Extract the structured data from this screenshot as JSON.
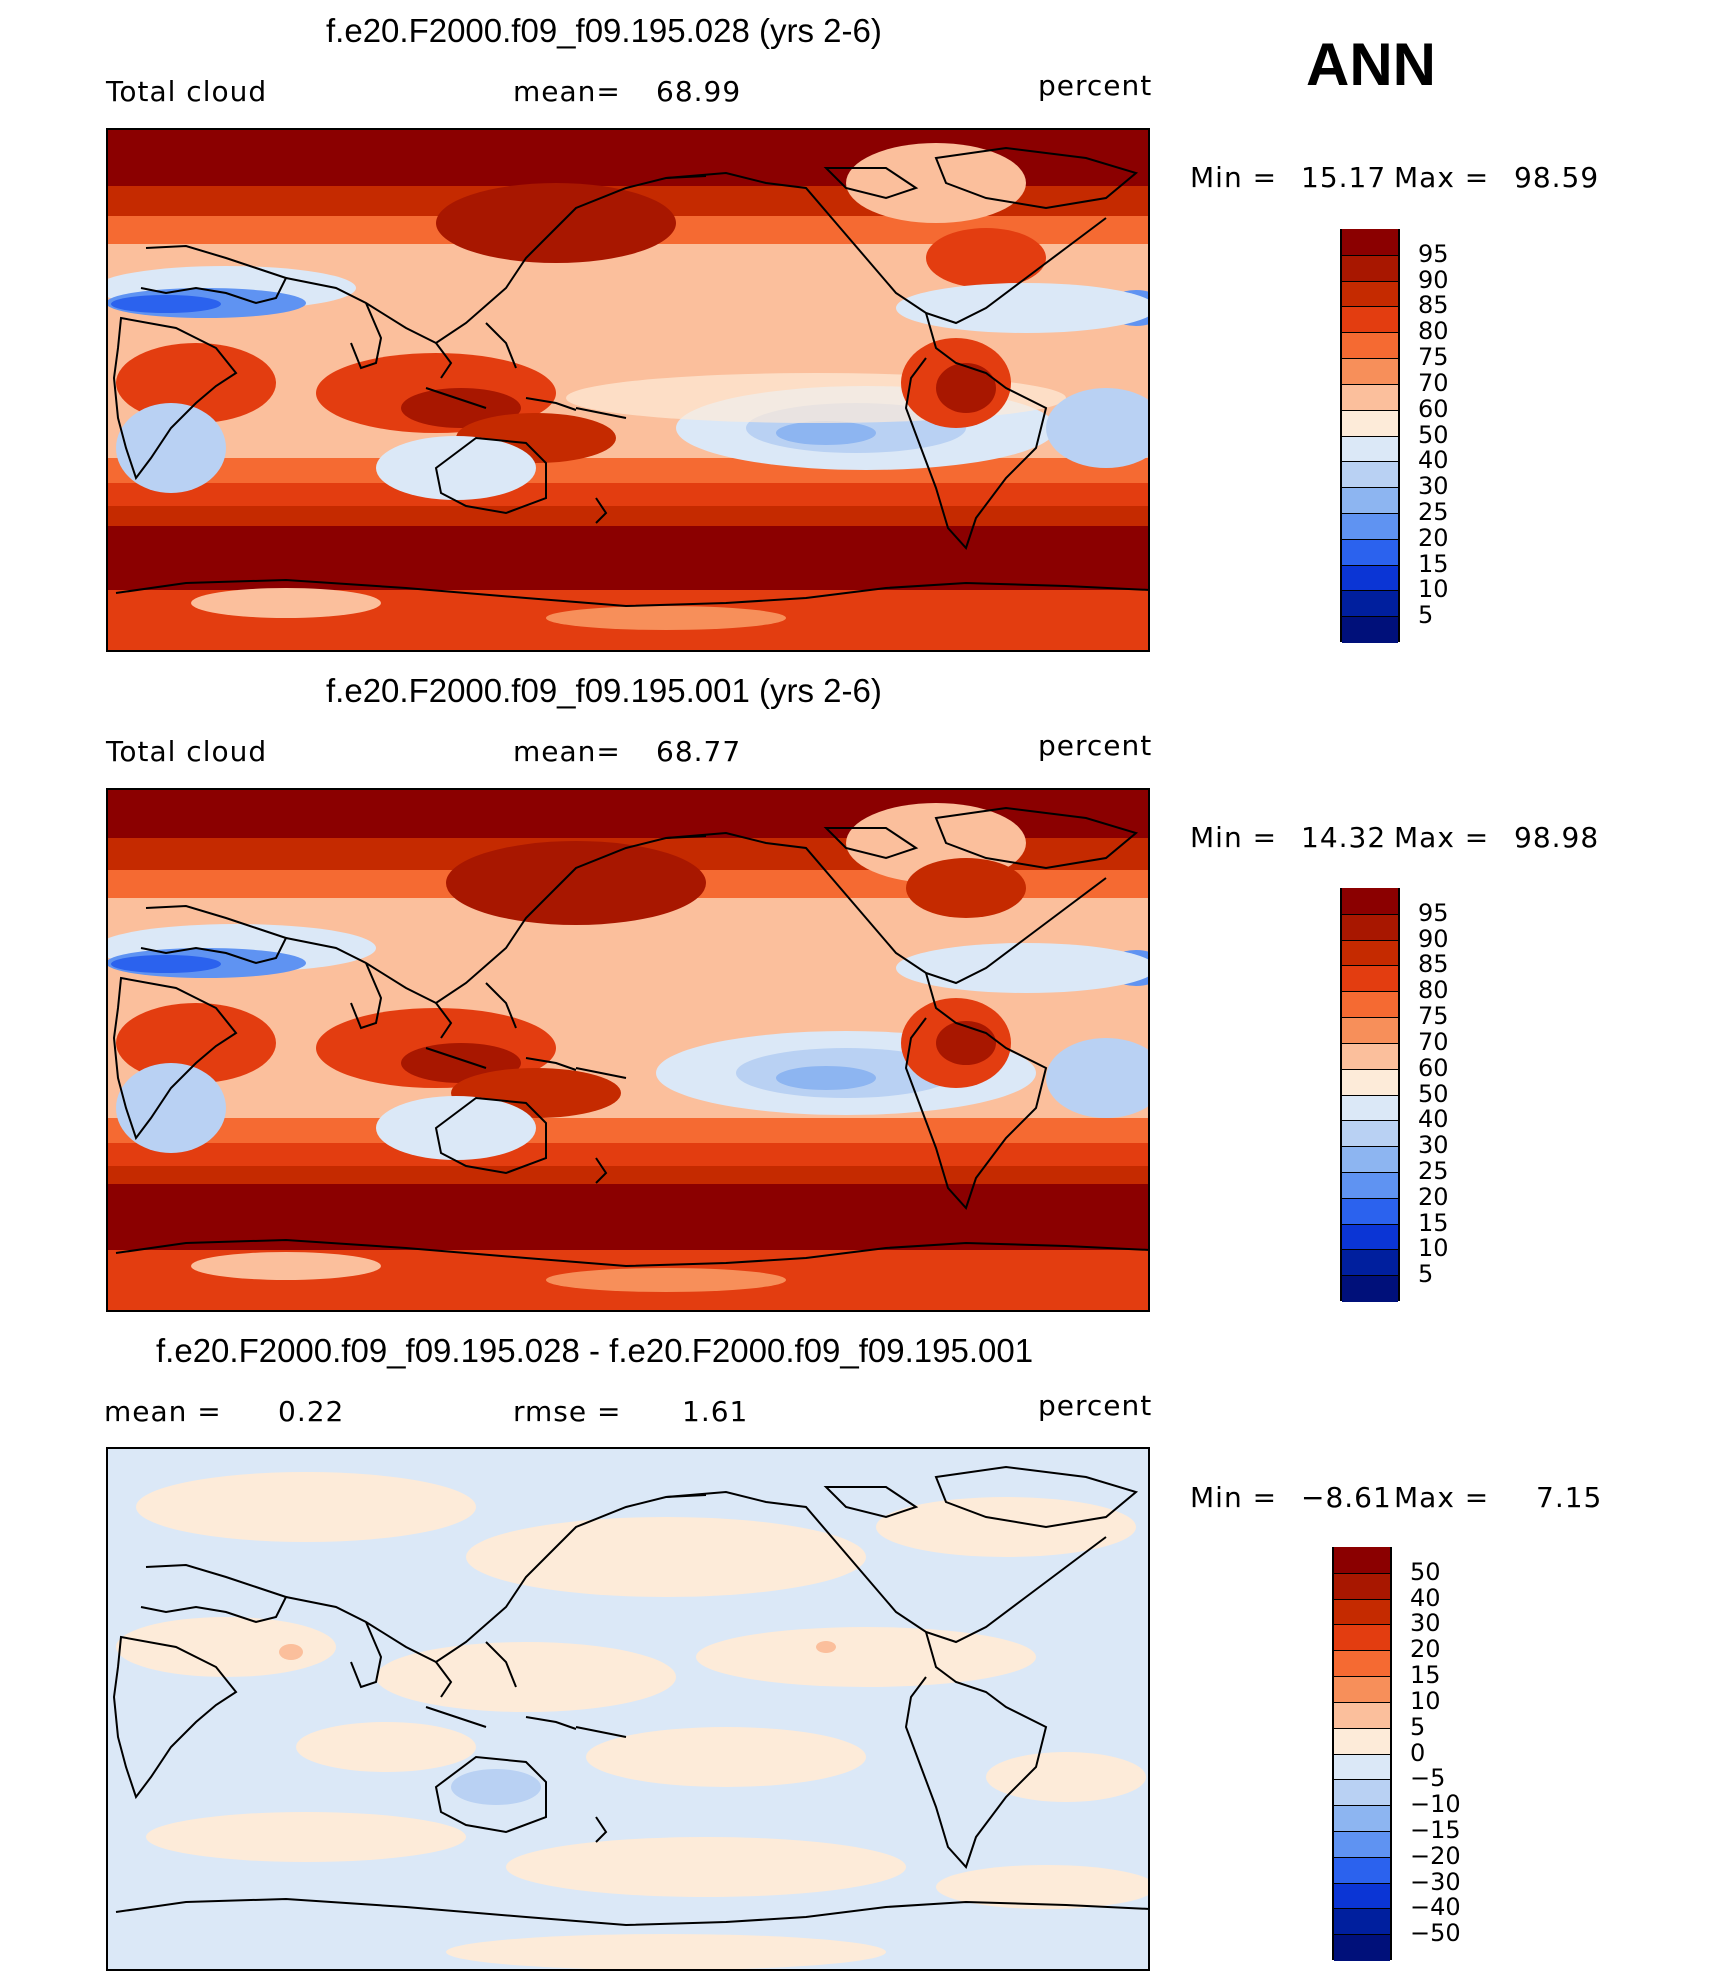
{
  "season": "ANN",
  "units": "percent",
  "panels": [
    {
      "title": "f.e20.F2000.f09_f09.195.028 (yrs 2-6)",
      "left_label": "Total cloud",
      "stat_label": "mean=",
      "stat_value": "68.99",
      "min_label": "Min  =",
      "min_value": "15.17",
      "max_label": "Max  =",
      "max_value": "98.59",
      "levels": [
        "95",
        "90",
        "85",
        "80",
        "75",
        "70",
        "60",
        "50",
        "40",
        "30",
        "25",
        "20",
        "15",
        "10",
        "5"
      ],
      "colors": [
        "#8b0000",
        "#a81700",
        "#c52a00",
        "#e33d10",
        "#f56a32",
        "#f78f5a",
        "#fbbf9c",
        "#fdebd9",
        "#dbe8f7",
        "#b9d1f3",
        "#8db5f1",
        "#5f93f2",
        "#2b62ee",
        "#0b35d5",
        "#001f9e",
        "#00107a"
      ]
    },
    {
      "title": "f.e20.F2000.f09_f09.195.001 (yrs 2-6)",
      "left_label": "Total cloud",
      "stat_label": "mean=",
      "stat_value": "68.77",
      "min_label": "Min  =",
      "min_value": "14.32",
      "max_label": "Max  =",
      "max_value": "98.98",
      "levels": [
        "95",
        "90",
        "85",
        "80",
        "75",
        "70",
        "60",
        "50",
        "40",
        "30",
        "25",
        "20",
        "15",
        "10",
        "5"
      ],
      "colors": [
        "#8b0000",
        "#a81700",
        "#c52a00",
        "#e33d10",
        "#f56a32",
        "#f78f5a",
        "#fbbf9c",
        "#fdebd9",
        "#dbe8f7",
        "#b9d1f3",
        "#8db5f1",
        "#5f93f2",
        "#2b62ee",
        "#0b35d5",
        "#001f9e",
        "#00107a"
      ]
    },
    {
      "title": "f.e20.F2000.f09_f09.195.028 - f.e20.F2000.f09_f09.195.001",
      "left_label": "mean  =",
      "left_value": "0.22",
      "stat_label": "rmse  =",
      "stat_value": "1.61",
      "min_label": "Min  =",
      "min_value": "−8.61",
      "max_label": "Max  =",
      "max_value": "7.15",
      "levels": [
        "50",
        "40",
        "30",
        "20",
        "15",
        "10",
        "5",
        "0",
        "−5",
        "−10",
        "−15",
        "−20",
        "−30",
        "−40",
        "−50"
      ],
      "colors": [
        "#8b0000",
        "#a81700",
        "#c52a00",
        "#e33d10",
        "#f56a32",
        "#f78f5a",
        "#fbbf9c",
        "#fdebd9",
        "#dbe8f7",
        "#b9d1f3",
        "#8db5f1",
        "#5f93f2",
        "#2b62ee",
        "#0b35d5",
        "#001f9e",
        "#00107a"
      ]
    }
  ]
}
